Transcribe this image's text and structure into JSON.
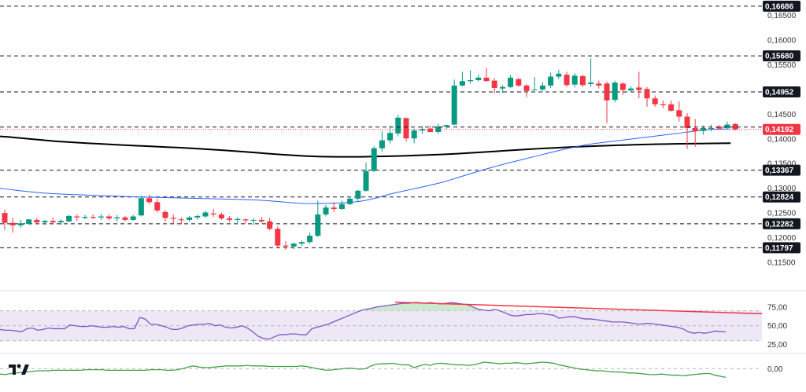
{
  "colors": {
    "up": "#089981",
    "down": "#f23645",
    "sma_long": "#000000",
    "sma_short": "#2962ff",
    "rsi": "#7e57c2",
    "rsi_band": "#ede7f6",
    "rsi_overbought_fill": "#c8e6c9",
    "divergence": "#f23645",
    "macd": "#43a047",
    "level_line": "#131722",
    "badge_bg": "#131722",
    "badge_text": "#ffffff"
  },
  "price_axis": {
    "ticks": [
      "0,16500",
      "0,16000",
      "0,15500",
      "0,14500",
      "0,14000",
      "0,13500",
      "0,13000",
      "0,12500",
      "0,12000",
      "0,11500"
    ],
    "tick_values": [
      0.165,
      0.16,
      0.155,
      0.145,
      0.14,
      0.135,
      0.13,
      0.125,
      0.12,
      0.115
    ],
    "range": [
      0.1115,
      0.1678
    ]
  },
  "levels": {
    "labels": [
      "0,16686",
      "0,15680",
      "0,14952",
      "0,13367",
      "0,12824",
      "0,12282",
      "0,11797"
    ],
    "values": [
      0.16686,
      0.1568,
      0.14952,
      0.13367,
      0.12824,
      0.12282,
      0.11797
    ]
  },
  "current_price": {
    "label": "0,14192",
    "value": 0.14192
  },
  "rsi_axis": {
    "ticks": [
      "75,00",
      "50,00",
      "25,00"
    ],
    "tick_values": [
      75,
      50,
      25
    ],
    "range": [
      15,
      100
    ]
  },
  "macd_axis": {
    "ticks": [
      "0,00"
    ],
    "tick_values": [
      0
    ],
    "range": [
      -0.003,
      0.0025
    ]
  },
  "chart_data": {
    "type": "candlestick",
    "title": "",
    "xlabel": "",
    "ylabel": "",
    "ylim": [
      0.1115,
      0.1678
    ],
    "ohlc": [
      [
        0.125,
        0.1257,
        0.1215,
        0.123
      ],
      [
        0.123,
        0.124,
        0.121,
        0.1225
      ],
      [
        0.1225,
        0.1236,
        0.122,
        0.1229
      ],
      [
        0.1228,
        0.1238,
        0.1226,
        0.1237
      ],
      [
        0.1236,
        0.124,
        0.1228,
        0.1231
      ],
      [
        0.1231,
        0.1236,
        0.1226,
        0.1234
      ],
      [
        0.1234,
        0.1241,
        0.1229,
        0.1231
      ],
      [
        0.1231,
        0.1237,
        0.1226,
        0.1234
      ],
      [
        0.1233,
        0.1246,
        0.1231,
        0.1244
      ],
      [
        0.1243,
        0.1247,
        0.1234,
        0.1241
      ],
      [
        0.124,
        0.1246,
        0.1237,
        0.1242
      ],
      [
        0.1242,
        0.1247,
        0.1238,
        0.124
      ],
      [
        0.1241,
        0.1248,
        0.1236,
        0.1243
      ],
      [
        0.1243,
        0.1247,
        0.1235,
        0.1239
      ],
      [
        0.1239,
        0.1246,
        0.1233,
        0.1241
      ],
      [
        0.1241,
        0.1244,
        0.1233,
        0.1236
      ],
      [
        0.1236,
        0.1246,
        0.1234,
        0.1243
      ],
      [
        0.1245,
        0.1285,
        0.1243,
        0.128
      ],
      [
        0.128,
        0.1287,
        0.1268,
        0.1272
      ],
      [
        0.1272,
        0.1279,
        0.1251,
        0.1255
      ],
      [
        0.1252,
        0.1256,
        0.1232,
        0.124
      ],
      [
        0.124,
        0.1247,
        0.1229,
        0.1238
      ],
      [
        0.1237,
        0.1241,
        0.1227,
        0.1236
      ],
      [
        0.1236,
        0.1244,
        0.1233,
        0.1241
      ],
      [
        0.1241,
        0.1246,
        0.1236,
        0.1244
      ],
      [
        0.1243,
        0.1255,
        0.124,
        0.1251
      ],
      [
        0.1249,
        0.1258,
        0.1242,
        0.1247
      ],
      [
        0.1247,
        0.1251,
        0.1236,
        0.1239
      ],
      [
        0.1239,
        0.1244,
        0.1232,
        0.1236
      ],
      [
        0.1236,
        0.1241,
        0.1229,
        0.1238
      ],
      [
        0.1237,
        0.1239,
        0.1229,
        0.1235
      ],
      [
        0.1235,
        0.1239,
        0.1226,
        0.1236
      ],
      [
        0.1236,
        0.1242,
        0.123,
        0.1233
      ],
      [
        0.1233,
        0.124,
        0.1215,
        0.1218
      ],
      [
        0.1218,
        0.1223,
        0.118,
        0.1184
      ],
      [
        0.1184,
        0.1193,
        0.1176,
        0.1182
      ],
      [
        0.1182,
        0.119,
        0.1177,
        0.1188
      ],
      [
        0.1188,
        0.1194,
        0.1183,
        0.1191
      ],
      [
        0.1191,
        0.121,
        0.1188,
        0.1204
      ],
      [
        0.1204,
        0.1275,
        0.1201,
        0.1247
      ],
      [
        0.1247,
        0.1266,
        0.1243,
        0.1261
      ],
      [
        0.1261,
        0.1272,
        0.1252,
        0.1258
      ],
      [
        0.1258,
        0.1275,
        0.1257,
        0.1268
      ],
      [
        0.1268,
        0.1283,
        0.1266,
        0.1279
      ],
      [
        0.1279,
        0.1297,
        0.1273,
        0.1295
      ],
      [
        0.1295,
        0.1352,
        0.1293,
        0.1335
      ],
      [
        0.1335,
        0.1385,
        0.1333,
        0.1381
      ],
      [
        0.1381,
        0.1416,
        0.1374,
        0.1397
      ],
      [
        0.1397,
        0.1427,
        0.1391,
        0.1412
      ],
      [
        0.1411,
        0.1449,
        0.1405,
        0.1443
      ],
      [
        0.1442,
        0.1443,
        0.1395,
        0.1401
      ],
      [
        0.1401,
        0.1421,
        0.1391,
        0.1417
      ],
      [
        0.1417,
        0.1426,
        0.141,
        0.142
      ],
      [
        0.1421,
        0.1427,
        0.1414,
        0.1414
      ],
      [
        0.1414,
        0.1431,
        0.141,
        0.1425
      ],
      [
        0.1425,
        0.1428,
        0.142,
        0.1428
      ],
      [
        0.1429,
        0.152,
        0.1428,
        0.1508
      ],
      [
        0.1508,
        0.1536,
        0.1506,
        0.1517
      ],
      [
        0.1517,
        0.1539,
        0.1512,
        0.1519
      ],
      [
        0.1519,
        0.153,
        0.1516,
        0.1524
      ],
      [
        0.1524,
        0.1544,
        0.1516,
        0.1517
      ],
      [
        0.1518,
        0.1523,
        0.1492,
        0.1503
      ],
      [
        0.1502,
        0.1509,
        0.1493,
        0.1505
      ],
      [
        0.1505,
        0.1529,
        0.1503,
        0.1524
      ],
      [
        0.1521,
        0.1524,
        0.1505,
        0.1508
      ],
      [
        0.1508,
        0.1511,
        0.1485,
        0.1497
      ],
      [
        0.15,
        0.1525,
        0.1498,
        0.15
      ],
      [
        0.15,
        0.1515,
        0.1496,
        0.1508
      ],
      [
        0.1508,
        0.1534,
        0.1503,
        0.1526
      ],
      [
        0.1526,
        0.154,
        0.1521,
        0.1532
      ],
      [
        0.153,
        0.1536,
        0.1505,
        0.1509
      ],
      [
        0.151,
        0.1533,
        0.1504,
        0.1528
      ],
      [
        0.1527,
        0.153,
        0.1505,
        0.1509
      ],
      [
        0.1511,
        0.1563,
        0.1506,
        0.1514
      ],
      [
        0.1512,
        0.1518,
        0.1502,
        0.1508
      ],
      [
        0.1512,
        0.1516,
        0.1432,
        0.1478
      ],
      [
        0.1479,
        0.1518,
        0.1474,
        0.1514
      ],
      [
        0.1512,
        0.1515,
        0.1489,
        0.1499
      ],
      [
        0.1498,
        0.1506,
        0.1494,
        0.1502
      ],
      [
        0.1504,
        0.1536,
        0.1482,
        0.1499
      ],
      [
        0.1501,
        0.1505,
        0.1465,
        0.1482
      ],
      [
        0.1482,
        0.1488,
        0.1465,
        0.147
      ],
      [
        0.147,
        0.1478,
        0.1462,
        0.1468
      ],
      [
        0.147,
        0.1478,
        0.1455,
        0.1457
      ],
      [
        0.1458,
        0.1476,
        0.1435,
        0.1445
      ],
      [
        0.1445,
        0.1452,
        0.138,
        0.1422
      ],
      [
        0.1422,
        0.144,
        0.1384,
        0.1416
      ],
      [
        0.1416,
        0.1427,
        0.1408,
        0.1422
      ],
      [
        0.1422,
        0.1429,
        0.1415,
        0.1422
      ],
      [
        0.1425,
        0.1428,
        0.1418,
        0.1421
      ],
      [
        0.1422,
        0.1435,
        0.142,
        0.1429
      ],
      [
        0.143,
        0.1432,
        0.1417,
        0.1419
      ]
    ],
    "series": [
      {
        "name": "SMA long",
        "values": [
          0.1405,
          0.1404,
          0.14025,
          0.1401,
          0.13995,
          0.1398,
          0.13965,
          0.13952,
          0.13942,
          0.13932,
          0.13922,
          0.13912,
          0.13903,
          0.13895,
          0.13886,
          0.13878,
          0.1387,
          0.13862,
          0.13855,
          0.13848,
          0.1384,
          0.13832,
          0.13825,
          0.13817,
          0.13808,
          0.13798,
          0.13788,
          0.13778,
          0.13768,
          0.13756,
          0.13744,
          0.13732,
          0.1372,
          0.13707,
          0.13695,
          0.13683,
          0.13672,
          0.13662,
          0.13653,
          0.13646,
          0.13641,
          0.13638,
          0.13637,
          0.13636,
          0.13636,
          0.13637,
          0.1364,
          0.13644,
          0.13647,
          0.1365,
          0.13655,
          0.1366,
          0.13666,
          0.13672,
          0.13678,
          0.13684,
          0.13692,
          0.137,
          0.1371,
          0.1372,
          0.1373,
          0.13741,
          0.13751,
          0.13762,
          0.13772,
          0.13782,
          0.13792,
          0.13801,
          0.1381,
          0.13818,
          0.13826,
          0.13834,
          0.13841,
          0.13848,
          0.13854,
          0.1386,
          0.13866,
          0.13871,
          0.13876,
          0.13881,
          0.13885,
          0.13889,
          0.13893,
          0.13896,
          0.13899,
          0.13902,
          0.13904,
          0.13906,
          0.13908,
          0.1391,
          0.13912,
          0.13914
        ]
      },
      {
        "name": "SMA short",
        "values": [
          0.13,
          0.1298,
          0.1296,
          0.12942,
          0.12925,
          0.1291,
          0.12898,
          0.12888,
          0.1288,
          0.12873,
          0.12867,
          0.12861,
          0.12855,
          0.12849,
          0.12843,
          0.12837,
          0.12831,
          0.12826,
          0.12822,
          0.12818,
          0.12814,
          0.1281,
          0.12806,
          0.12802,
          0.12798,
          0.12794,
          0.1279,
          0.12786,
          0.12782,
          0.12778,
          0.12774,
          0.12768,
          0.12762,
          0.12752,
          0.1274,
          0.12726,
          0.12712,
          0.12698,
          0.1269,
          0.12688,
          0.1269,
          0.12695,
          0.127,
          0.12708,
          0.1272,
          0.1274,
          0.1277,
          0.1281,
          0.12855,
          0.129,
          0.12935,
          0.1297,
          0.13005,
          0.1304,
          0.13078,
          0.13118,
          0.13165,
          0.13215,
          0.13265,
          0.13315,
          0.13365,
          0.1341,
          0.13455,
          0.135,
          0.1354,
          0.1358,
          0.1362,
          0.1366,
          0.137,
          0.1374,
          0.1378,
          0.13815,
          0.1385,
          0.1388,
          0.13905,
          0.13925,
          0.13945,
          0.13965,
          0.13985,
          0.14005,
          0.14025,
          0.14045,
          0.14065,
          0.14085,
          0.14105,
          0.14125,
          0.14145,
          0.14165,
          0.14185,
          0.14195,
          0.142,
          0.142
        ]
      }
    ],
    "rsi": {
      "values": [
        45,
        44,
        44,
        43,
        42,
        46,
        47,
        44,
        45,
        47,
        46,
        46,
        46,
        51,
        50,
        49,
        49,
        50,
        49,
        48,
        48,
        49,
        48,
        49,
        46,
        46,
        61,
        59,
        52,
        52,
        50,
        48,
        45,
        45,
        47,
        50,
        51,
        52,
        52,
        53,
        50,
        51,
        48,
        47,
        48,
        50,
        47,
        42,
        36,
        33,
        32,
        35,
        38,
        38,
        39,
        39,
        38,
        38,
        46,
        48,
        50,
        52,
        55,
        58,
        61,
        64,
        67,
        70,
        72,
        73,
        75,
        76,
        77,
        78,
        79,
        80,
        80,
        81,
        81,
        80,
        81,
        80,
        79,
        80,
        81,
        80,
        79,
        78,
        75,
        72,
        71,
        70,
        72,
        70,
        67,
        64,
        63,
        64,
        65,
        65,
        66,
        66,
        65,
        64,
        60,
        61,
        62,
        62,
        60,
        59,
        59,
        58,
        57,
        56,
        55,
        55,
        55,
        54,
        53,
        52,
        53,
        53,
        52,
        51,
        50,
        49,
        48,
        46,
        42,
        40,
        41,
        40,
        41,
        43,
        42,
        42
      ],
      "divergence_line": [
        81.5,
        66
      ]
    },
    "macd": {
      "values": [
        -0.001,
        -0.0011,
        -0.0009,
        -0.0008,
        -0.0007,
        -0.0006,
        -0.0005,
        -0.0004,
        -0.0004,
        -0.0004,
        -0.0003,
        -0.0003,
        -0.0003,
        -0.0003,
        -0.0003,
        -0.0003,
        -0.0002,
        -0.0002,
        -0.0002,
        -0.0002,
        -0.0003,
        -0.0003,
        -0.0003,
        -0.0003,
        -0.0003,
        -0.0003,
        -0.0003,
        -0.0003,
        -0.0002,
        -0.0002,
        -0.0002,
        -0.0003,
        -0.0003,
        -0.0002,
        0.0,
        0.0003,
        0.0005,
        0.0003,
        0.0002,
        0.0002,
        0.0003,
        0.0004,
        0.0005,
        0.0005,
        0.0005,
        0.0005,
        0.0006,
        0.0005,
        0.0005,
        0.0005,
        0.0004,
        0.0004,
        0.0004,
        0.0004,
        0.0004,
        0.0004,
        0.0005,
        0.0004,
        0.0002,
        0.0,
        -0.0002,
        -0.0003,
        -0.0002,
        -0.0001,
        0.0,
        0.0001,
        0.0,
        -0.0001,
        0.0,
        0.0005,
        0.0008,
        0.0009,
        0.0009,
        0.001,
        0.0008,
        0.0007,
        0.0007,
        0.0002,
        0.0005,
        0.0008,
        0.0006,
        0.0009,
        0.001,
        0.0009,
        0.0008,
        0.0007,
        0.0007,
        0.0006,
        0.0007,
        0.0009,
        0.0012,
        0.0011,
        0.001,
        0.0009,
        0.001,
        0.001,
        0.0011,
        0.001,
        0.0009,
        0.001,
        0.0011,
        0.0012,
        0.0011,
        0.001,
        0.0007,
        0.0005,
        0.0003,
        0.0001,
        -0.0001,
        -0.0002,
        -0.0003,
        -0.0004,
        -0.0004,
        -0.0005,
        -0.0006,
        -0.0006,
        -0.0007,
        -0.0008,
        -0.0008,
        -0.0009,
        -0.001,
        -0.0011,
        -0.0011,
        -0.001,
        -0.0011,
        -0.0012,
        -0.0012,
        -0.0013,
        -0.0012,
        -0.0011,
        -0.001,
        -0.0009,
        -0.0009,
        -0.0012,
        -0.0014,
        -0.0016
      ]
    }
  }
}
